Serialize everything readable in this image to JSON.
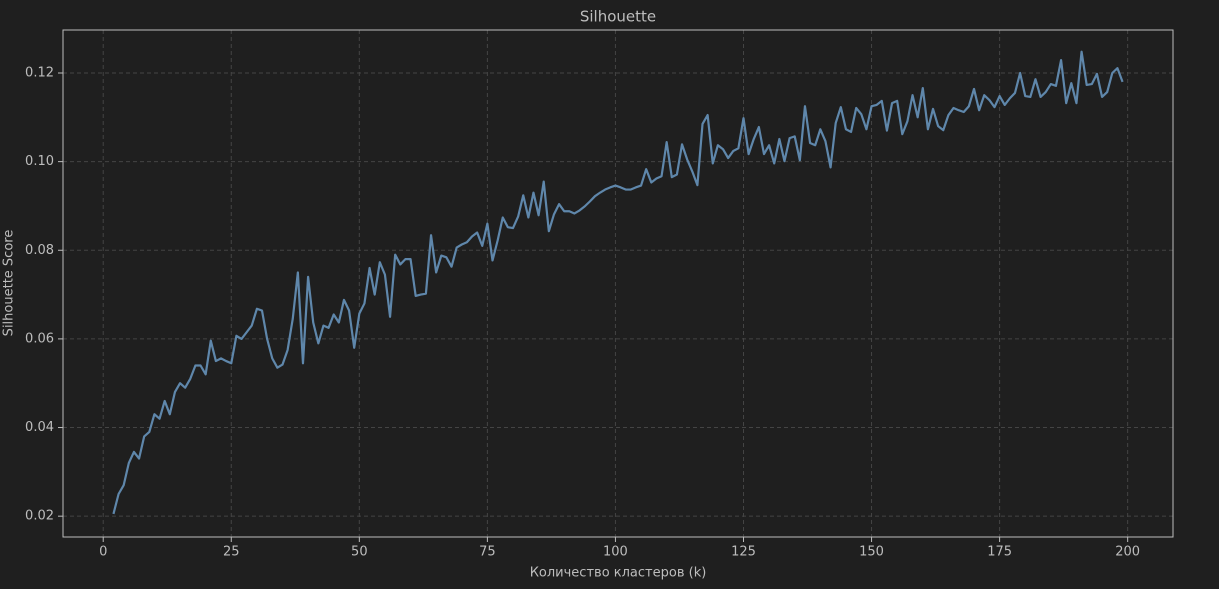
{
  "chart_data": {
    "type": "line",
    "title": "Silhouette",
    "x_label": "Количество кластеров (k)",
    "y_label": "Silhouette Score",
    "x": [
      2,
      3,
      4,
      5,
      6,
      7,
      8,
      9,
      10,
      11,
      12,
      13,
      14,
      15,
      16,
      17,
      18,
      19,
      20,
      21,
      22,
      23,
      24,
      25,
      26,
      27,
      28,
      29,
      30,
      31,
      32,
      33,
      34,
      35,
      36,
      37,
      38,
      39,
      40,
      41,
      42,
      43,
      44,
      45,
      46,
      47,
      48,
      49,
      50,
      51,
      52,
      53,
      54,
      55,
      56,
      57,
      58,
      59,
      60,
      61,
      62,
      63,
      64,
      65,
      66,
      67,
      68,
      69,
      70,
      71,
      72,
      73,
      74,
      75,
      76,
      77,
      78,
      79,
      80,
      81,
      82,
      83,
      84,
      85,
      86,
      87,
      88,
      89,
      90,
      91,
      92,
      93,
      94,
      95,
      96,
      97,
      98,
      99,
      100,
      101,
      102,
      103,
      104,
      105,
      106,
      107,
      108,
      109,
      110,
      111,
      112,
      113,
      114,
      115,
      116,
      117,
      118,
      119,
      120,
      121,
      122,
      123,
      124,
      125,
      126,
      127,
      128,
      129,
      130,
      131,
      132,
      133,
      134,
      135,
      136,
      137,
      138,
      139,
      140,
      141,
      142,
      143,
      144,
      145,
      146,
      147,
      148,
      149,
      150,
      151,
      152,
      153,
      154,
      155,
      156,
      157,
      158,
      159,
      160,
      161,
      162,
      163,
      164,
      165,
      166,
      167,
      168,
      169,
      170,
      171,
      172,
      173,
      174,
      175,
      176,
      177,
      178,
      179,
      180,
      181,
      182,
      183,
      184,
      185,
      186,
      187,
      188,
      189,
      190,
      191,
      192,
      193,
      194,
      195,
      196,
      197,
      198,
      199
    ],
    "values": [
      0.0205,
      0.025,
      0.027,
      0.032,
      0.0345,
      0.033,
      0.038,
      0.039,
      0.043,
      0.042,
      0.046,
      0.043,
      0.048,
      0.05,
      0.049,
      0.051,
      0.054,
      0.054,
      0.052,
      0.0596,
      0.055,
      0.0556,
      0.055,
      0.0545,
      0.0607,
      0.06,
      0.0615,
      0.063,
      0.0668,
      0.0664,
      0.06,
      0.0556,
      0.0535,
      0.0542,
      0.0575,
      0.0645,
      0.075,
      0.0545,
      0.074,
      0.0637,
      0.059,
      0.063,
      0.0625,
      0.0655,
      0.0637,
      0.0688,
      0.0664,
      0.058,
      0.0657,
      0.068,
      0.076,
      0.07,
      0.0773,
      0.0745,
      0.065,
      0.079,
      0.0768,
      0.078,
      0.078,
      0.0697,
      0.07,
      0.0702,
      0.0834,
      0.075,
      0.0788,
      0.0784,
      0.0763,
      0.0806,
      0.0813,
      0.0818,
      0.0831,
      0.084,
      0.081,
      0.086,
      0.0777,
      0.0822,
      0.0874,
      0.0852,
      0.085,
      0.0876,
      0.0924,
      0.0874,
      0.093,
      0.0879,
      0.0955,
      0.0843,
      0.0881,
      0.0904,
      0.0888,
      0.0888,
      0.0883,
      0.089,
      0.0899,
      0.091,
      0.0922,
      0.093,
      0.0937,
      0.0942,
      0.0946,
      0.0942,
      0.0937,
      0.0937,
      0.0942,
      0.0946,
      0.0983,
      0.0953,
      0.0962,
      0.0967,
      0.1044,
      0.0965,
      0.0971,
      0.1039,
      0.1005,
      0.0978,
      0.0947,
      0.1085,
      0.1105,
      0.0996,
      0.1037,
      0.1028,
      0.1008,
      0.1024,
      0.103,
      0.1098,
      0.1017,
      0.1051,
      0.1078,
      0.1017,
      0.1037,
      0.0996,
      0.1051,
      0.1001,
      0.1053,
      0.1057,
      0.1003,
      0.1125,
      0.1042,
      0.1037,
      0.1073,
      0.1046,
      0.0987,
      0.1087,
      0.1123,
      0.1073,
      0.1067,
      0.1121,
      0.1107,
      0.1073,
      0.1125,
      0.1128,
      0.1137,
      0.107,
      0.1132,
      0.1137,
      0.1062,
      0.1091,
      0.115,
      0.11,
      0.1166,
      0.1073,
      0.1119,
      0.108,
      0.1071,
      0.1105,
      0.1121,
      0.1116,
      0.1112,
      0.1125,
      0.1164,
      0.1116,
      0.115,
      0.1139,
      0.1123,
      0.1148,
      0.1128,
      0.1143,
      0.1155,
      0.12,
      0.1148,
      0.1146,
      0.1186,
      0.1146,
      0.1157,
      0.1175,
      0.1171,
      0.1229,
      0.1132,
      0.1177,
      0.1132,
      0.1248,
      0.1173,
      0.1175,
      0.1198,
      0.1146,
      0.1157,
      0.12,
      0.1211,
      0.118
    ],
    "color": "#5f87ab",
    "xlim": [
      -7.85,
      208.85
    ],
    "xticks": [
      0,
      25,
      50,
      75,
      100,
      125,
      150,
      175,
      200
    ],
    "ylim": [
      0.0153,
      0.1297
    ],
    "yticks": [
      0.02,
      0.04,
      0.06,
      0.08,
      {
        "value": 0.1,
        "label": "0.10"
      },
      0.12
    ],
    "grid": true
  }
}
